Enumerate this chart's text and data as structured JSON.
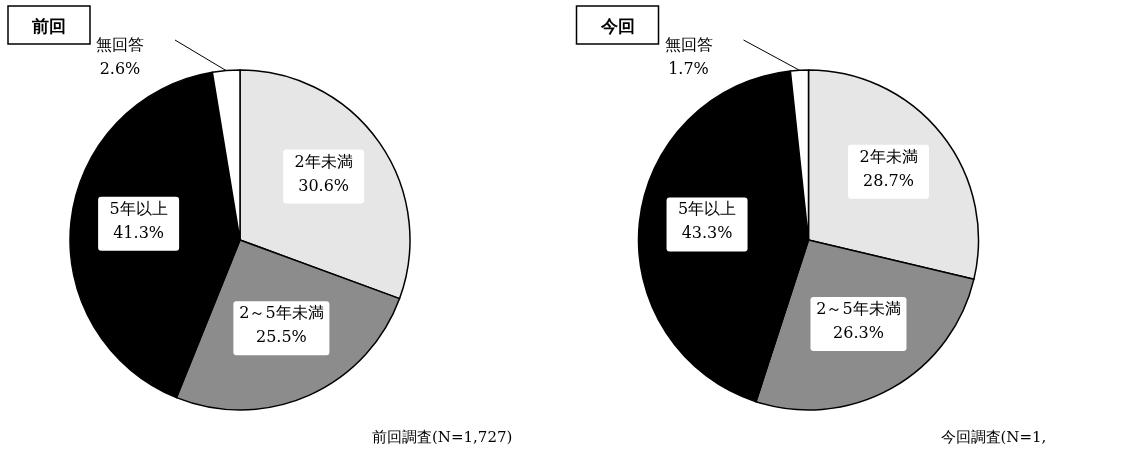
{
  "chart_data": [
    {
      "type": "pie",
      "title": "前回",
      "categories": [
        "2年未満",
        "2～5年未満",
        "5年以上",
        "無回答"
      ],
      "values": [
        30.6,
        25.5,
        41.3,
        2.6
      ],
      "value_labels": [
        "30.6%",
        "25.5%",
        "41.3%",
        "2.6%"
      ],
      "colors": [
        "#e6e6e6",
        "#8c8c8c",
        "#000000",
        "#ffffff"
      ],
      "annotations": [
        "前回調査(N=1,727)"
      ]
    },
    {
      "type": "pie",
      "title": "今回",
      "categories": [
        "2年未満",
        "2～5年未満",
        "5年以上",
        "無回答"
      ],
      "values": [
        28.7,
        26.3,
        43.3,
        1.7
      ],
      "value_labels": [
        "28.7%",
        "26.3%",
        "43.3%",
        "1.7%"
      ],
      "colors": [
        "#e6e6e6",
        "#8c8c8c",
        "#000000",
        "#ffffff"
      ],
      "annotations": [
        "今回調査(N=1,"
      ]
    }
  ]
}
